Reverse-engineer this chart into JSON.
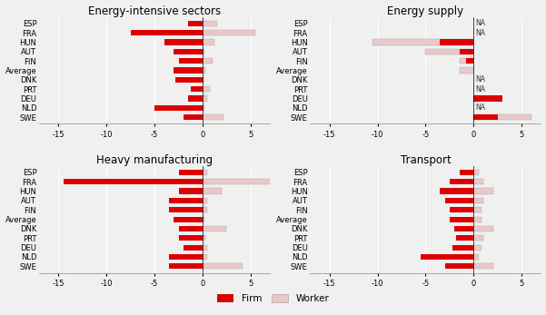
{
  "panels": [
    {
      "title": "Energy-intensive sectors",
      "countries": [
        "ESP",
        "FRA",
        "HUN",
        "AUT",
        "FIN",
        "Average",
        "DNK",
        "PRT",
        "DEU",
        "NLD",
        "SWE"
      ],
      "firm": [
        -1.5,
        -7.5,
        -4.0,
        -3.0,
        -2.5,
        -3.0,
        -2.8,
        -1.2,
        -1.5,
        -5.0,
        -2.0
      ],
      "worker": [
        1.5,
        5.5,
        1.2,
        0.2,
        1.0,
        0.3,
        0.1,
        0.8,
        0.5,
        0.2,
        2.2
      ],
      "na": [
        false,
        false,
        false,
        false,
        false,
        false,
        false,
        false,
        false,
        false,
        false
      ]
    },
    {
      "title": "Energy supply",
      "countries": [
        "ESP",
        "FRA",
        "HUN",
        "AUT",
        "FIN",
        "Average",
        "DNK",
        "PRT",
        "DEU",
        "NLD",
        "SWE"
      ],
      "firm": [
        null,
        null,
        -3.5,
        -1.5,
        -0.8,
        0.0,
        null,
        null,
        3.0,
        null,
        2.5
      ],
      "worker": [
        null,
        null,
        -10.5,
        -5.0,
        -1.5,
        -1.5,
        null,
        null,
        0.5,
        null,
        6.0
      ],
      "na": [
        true,
        true,
        false,
        false,
        false,
        false,
        true,
        true,
        false,
        true,
        false
      ]
    },
    {
      "title": "Heavy manufacturing",
      "countries": [
        "ESP",
        "FRA",
        "HUN",
        "AUT",
        "FIN",
        "Average",
        "DNK",
        "PRT",
        "DEU",
        "NLD",
        "SWE"
      ],
      "firm": [
        -2.5,
        -14.5,
        -2.5,
        -3.5,
        -3.5,
        -3.0,
        -2.5,
        -2.5,
        -2.0,
        -3.5,
        -3.5
      ],
      "worker": [
        0.5,
        9.0,
        2.0,
        0.5,
        0.5,
        0.2,
        2.5,
        0.3,
        0.5,
        0.5,
        4.2
      ],
      "na": [
        false,
        false,
        false,
        false,
        false,
        false,
        false,
        false,
        false,
        false,
        false
      ]
    },
    {
      "title": "Transport",
      "countries": [
        "ESP",
        "FRA",
        "HUN",
        "AUT",
        "FIN",
        "Average",
        "DNK",
        "PRT",
        "DEU",
        "NLD",
        "SWE"
      ],
      "firm": [
        -1.5,
        -2.5,
        -3.5,
        -3.0,
        -2.5,
        -2.5,
        -2.0,
        -1.8,
        -2.2,
        -5.5,
        -3.0
      ],
      "worker": [
        0.5,
        1.0,
        2.0,
        1.0,
        0.8,
        0.8,
        2.0,
        1.0,
        0.8,
        0.5,
        2.0
      ],
      "na": [
        false,
        false,
        false,
        false,
        false,
        false,
        false,
        false,
        false,
        false,
        false
      ]
    }
  ],
  "xlim": [
    -17,
    7
  ],
  "xticks": [
    -15,
    -10,
    -5,
    0,
    5
  ],
  "bar_height": 0.6,
  "firm_color": "#dd0000",
  "worker_color": "#e8c8c8",
  "background_color": "#f0f0f0",
  "title_fontsize": 8.5,
  "tick_fontsize": 6,
  "na_fontsize": 5.5
}
